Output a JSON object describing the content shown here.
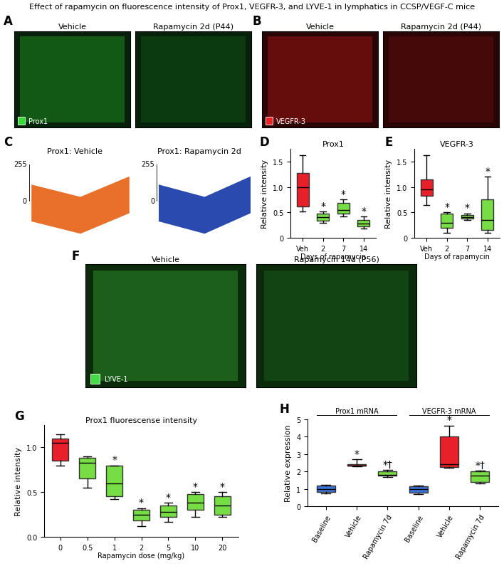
{
  "title": "Effect of rapamycin on fluorescence intensity of Prox1, VEGFR-3, and LYVE-1 in lymphatics in CCSP/VEGF-C mice",
  "image_panels": [
    {
      "label": "A",
      "images": [
        {
          "title": "Vehicle"
        },
        {
          "title": "Rapamycin 2d (P44)"
        }
      ],
      "stain": "Prox1",
      "stain_color": "#33dd33",
      "background": "#06200a"
    },
    {
      "label": "B",
      "images": [
        {
          "title": "Vehicle"
        },
        {
          "title": "Rapamycin 2d (P44)"
        }
      ],
      "stain": "VEGFR-3",
      "stain_color": "#ee2222",
      "background": "#2a0505"
    },
    {
      "label": "C",
      "images": [
        {
          "title": "Prox1: Vehicle"
        },
        {
          "title": "Prox1: Rapamycin 2d"
        }
      ],
      "scale": [
        0,
        255
      ],
      "colors": [
        "#e8702a",
        "#2a4ab0"
      ]
    },
    {
      "label": "F",
      "images": [
        {
          "title": "Vehicle"
        },
        {
          "title": "Rapamycin 14d (P56)"
        }
      ],
      "stain": "LYVE-1",
      "stain_color": "#44dd44",
      "background": "#0a2a0a"
    }
  ],
  "chart_data": [
    {
      "label": "D",
      "type": "box",
      "title": "Prox1",
      "ylabel": "Relative intensity",
      "xlabel": "Days of rapamycin",
      "categories": [
        "Veh",
        "2",
        "7",
        "14"
      ],
      "boxes": [
        {
          "min": 0.52,
          "q1": 0.62,
          "median": 1.0,
          "q3": 1.28,
          "max": 1.62
        },
        {
          "min": 0.3,
          "q1": 0.33,
          "median": 0.4,
          "q3": 0.48,
          "max": 0.52
        },
        {
          "min": 0.42,
          "q1": 0.48,
          "median": 0.55,
          "q3": 0.68,
          "max": 0.75
        },
        {
          "min": 0.18,
          "q1": 0.22,
          "median": 0.28,
          "q3": 0.35,
          "max": 0.42
        }
      ],
      "colors": [
        "#e8202a",
        "#77dd44",
        "#77dd44",
        "#77dd44"
      ],
      "significance": [
        null,
        "*",
        "*",
        "*"
      ],
      "ylim": [
        0,
        1.75
      ],
      "yticks": [
        0,
        0.5,
        {
          "value": 1,
          "label": "1.0"
        },
        1.5
      ]
    },
    {
      "label": "E",
      "type": "box",
      "title": "VEGFR-3",
      "ylabel": "Relative intensity",
      "xlabel": "Days of rapamycin",
      "categories": [
        "Veh",
        "2",
        "7",
        "14"
      ],
      "boxes": [
        {
          "min": 0.65,
          "q1": 0.82,
          "median": 0.95,
          "q3": 1.15,
          "max": 1.62
        },
        {
          "min": 0.1,
          "q1": 0.2,
          "median": 0.3,
          "q3": 0.48,
          "max": 0.5
        },
        {
          "min": 0.35,
          "q1": 0.38,
          "median": 0.4,
          "q3": 0.45,
          "max": 0.48
        },
        {
          "min": 0.1,
          "q1": 0.15,
          "median": 0.35,
          "q3": 0.75,
          "max": 1.2
        }
      ],
      "colors": [
        "#e8202a",
        "#77dd44",
        "#77dd44",
        "#77dd44"
      ],
      "significance": [
        null,
        "*",
        "*",
        "*"
      ],
      "ylim": [
        0,
        1.75
      ],
      "yticks": [
        0,
        0.5,
        {
          "value": 1,
          "label": "1.0"
        },
        1.5
      ]
    },
    {
      "label": "G",
      "type": "box",
      "title": "Prox1 fluorescense intensity",
      "ylabel": "Relative intensity",
      "xlabel": "Rapamycin dose (mg/kg)",
      "categories": [
        "0",
        "0.5",
        "1",
        "2",
        "5",
        "10",
        "20"
      ],
      "boxes": [
        {
          "min": 0.8,
          "q1": 0.85,
          "median": 1.05,
          "q3": 1.1,
          "max": 1.15
        },
        {
          "min": 0.55,
          "q1": 0.65,
          "median": 0.83,
          "q3": 0.88,
          "max": 0.9
        },
        {
          "min": 0.42,
          "q1": 0.45,
          "median": 0.6,
          "q3": 0.8,
          "max": 0.8
        },
        {
          "min": 0.12,
          "q1": 0.18,
          "median": 0.25,
          "q3": 0.3,
          "max": 0.32
        },
        {
          "min": 0.17,
          "q1": 0.22,
          "median": 0.28,
          "q3": 0.35,
          "max": 0.38
        },
        {
          "min": 0.22,
          "q1": 0.3,
          "median": 0.38,
          "q3": 0.48,
          "max": 0.5
        },
        {
          "min": 0.22,
          "q1": 0.25,
          "median": 0.35,
          "q3": 0.45,
          "max": 0.5
        }
      ],
      "colors": [
        "#e8202a",
        "#77dd44",
        "#77dd44",
        "#77dd44",
        "#77dd44",
        "#77dd44",
        "#77dd44"
      ],
      "significance": [
        null,
        null,
        "*",
        "*",
        "*",
        "*",
        "*"
      ],
      "ylim": [
        0,
        1.25
      ],
      "yticks": [
        {
          "value": 0,
          "label": "0.0"
        },
        0.5,
        {
          "value": 1,
          "label": "1.0"
        }
      ]
    },
    {
      "label": "H",
      "type": "box",
      "ylabel": "Relative expression",
      "categories": [
        "Baseline",
        "Vehicle",
        "Rapamycin 7d",
        "Baseline",
        "Vehicle",
        "Rapamycin 7d"
      ],
      "group_labels": [
        "Prox1 mRNA",
        "VEGFR-3 mRNA"
      ],
      "boxes": [
        {
          "min": 0.75,
          "q1": 0.8,
          "median": 1.0,
          "q3": 1.2,
          "max": 1.25
        },
        {
          "min": 2.3,
          "q1": 2.32,
          "median": 2.35,
          "q3": 2.4,
          "max": 2.7
        },
        {
          "min": 1.7,
          "q1": 1.75,
          "median": 1.8,
          "q3": 2.0,
          "max": 2.1
        },
        {
          "min": 0.7,
          "q1": 0.78,
          "median": 1.0,
          "q3": 1.15,
          "max": 1.2
        },
        {
          "min": 2.2,
          "q1": 2.25,
          "median": 2.4,
          "q3": 4.0,
          "max": 4.65
        },
        {
          "min": 1.3,
          "q1": 1.4,
          "median": 1.75,
          "q3": 2.0,
          "max": 2.05
        }
      ],
      "colors": [
        "#3b73d9",
        "#e8202a",
        "#77dd44",
        "#3b73d9",
        "#e8202a",
        "#77dd44"
      ],
      "significance": [
        null,
        "*",
        "*†",
        null,
        "*",
        "*†"
      ],
      "ylim": [
        0,
        5
      ],
      "yticks": [
        0,
        1,
        2,
        3,
        4,
        5
      ]
    }
  ]
}
